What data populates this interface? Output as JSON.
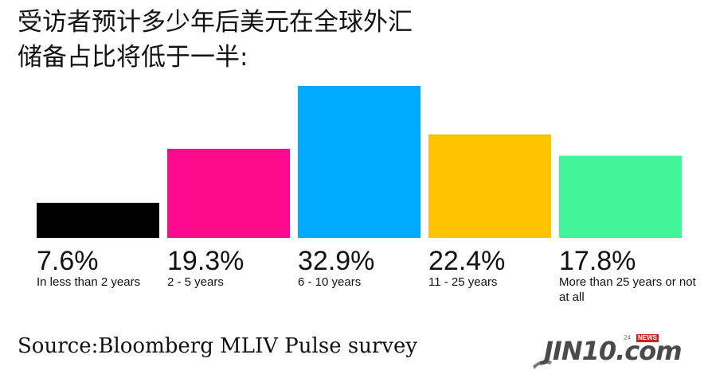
{
  "title_lines": [
    "受访者预计多少年后美元在全球外汇",
    "储备占比将低于一半:"
  ],
  "chart_data": {
    "type": "bar",
    "categories": [
      "In less than 2 years",
      "2 - 5 years",
      "6 - 10 years",
      "11 - 25 years",
      "More than 25 years or not at all"
    ],
    "values": [
      7.6,
      19.3,
      32.9,
      22.4,
      17.8
    ],
    "value_labels": [
      "7.6%",
      "19.3%",
      "32.9%",
      "22.4%",
      "17.8%"
    ],
    "colors": [
      "#000000",
      "#ff0a8c",
      "#00aaff",
      "#ffc300",
      "#3ff598"
    ],
    "ylim": [
      0,
      32.9
    ],
    "grid": false,
    "legend": "none"
  },
  "source": "Source:Bloomberg MLIV Pulse survey",
  "logo": {
    "main": "JIN10.com",
    "small": "24",
    "tag": "NEWS"
  }
}
